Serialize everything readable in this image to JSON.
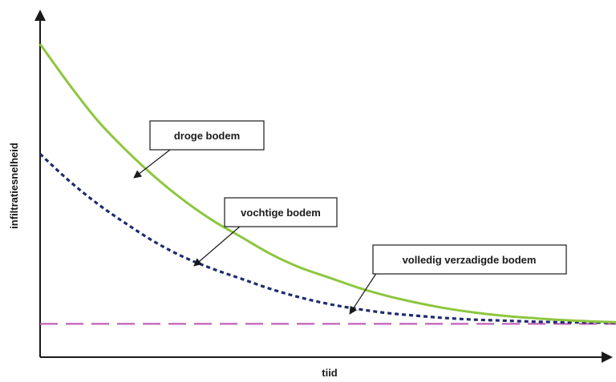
{
  "chart_data": {
    "type": "line",
    "title": "",
    "xlabel": "tiid",
    "ylabel": "infiltratiesnelheid",
    "x_ticks": false,
    "y_ticks": false,
    "grid": false,
    "xlim": [
      0,
      1
    ],
    "ylim": [
      0,
      1
    ],
    "series": [
      {
        "name": "droge bodem",
        "color": "#8dc63f",
        "style": "solid",
        "points": [
          [
            0,
            0.94
          ],
          [
            0.05,
            0.82
          ],
          [
            0.1,
            0.71
          ],
          [
            0.15,
            0.62
          ],
          [
            0.2,
            0.54
          ],
          [
            0.25,
            0.47
          ],
          [
            0.3,
            0.41
          ],
          [
            0.35,
            0.36
          ],
          [
            0.4,
            0.31
          ],
          [
            0.45,
            0.27
          ],
          [
            0.5,
            0.24
          ],
          [
            0.55,
            0.21
          ],
          [
            0.6,
            0.185
          ],
          [
            0.65,
            0.165
          ],
          [
            0.7,
            0.148
          ],
          [
            0.75,
            0.135
          ],
          [
            0.8,
            0.125
          ],
          [
            0.85,
            0.118
          ],
          [
            0.9,
            0.112
          ],
          [
            0.95,
            0.108
          ],
          [
            1.0,
            0.105
          ]
        ]
      },
      {
        "name": "vochtige bodem",
        "color": "#1f2b6e",
        "style": "dotted-dashed",
        "points": [
          [
            0,
            0.61
          ],
          [
            0.05,
            0.53
          ],
          [
            0.1,
            0.46
          ],
          [
            0.15,
            0.4
          ],
          [
            0.2,
            0.345
          ],
          [
            0.25,
            0.3
          ],
          [
            0.3,
            0.265
          ],
          [
            0.35,
            0.235
          ],
          [
            0.4,
            0.205
          ],
          [
            0.45,
            0.18
          ],
          [
            0.5,
            0.16
          ],
          [
            0.55,
            0.145
          ],
          [
            0.6,
            0.133
          ],
          [
            0.65,
            0.125
          ],
          [
            0.7,
            0.118
          ],
          [
            0.75,
            0.113
          ],
          [
            0.8,
            0.11
          ],
          [
            0.85,
            0.107
          ],
          [
            0.9,
            0.105
          ],
          [
            0.95,
            0.104
          ],
          [
            1.0,
            0.103
          ]
        ]
      },
      {
        "name": "volledig verzadigde bodem",
        "color": "#c060b8",
        "style": "dashed",
        "points": [
          [
            0,
            0.1
          ],
          [
            1.0,
            0.1
          ]
        ]
      }
    ],
    "annotations": [
      {
        "text": "droge bodem",
        "target_series": "droge bodem"
      },
      {
        "text": "vochtige bodem",
        "target_series": "vochtige bodem"
      },
      {
        "text": "volledig verzadigde bodem",
        "target_series": "volledig verzadigde bodem"
      }
    ]
  }
}
